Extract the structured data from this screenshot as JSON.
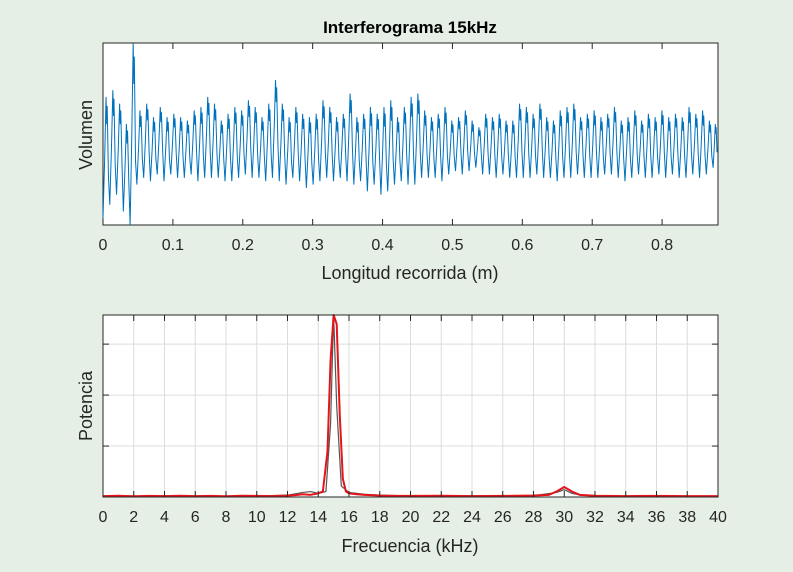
{
  "colors": {
    "background": "#e5efe5",
    "signal": "#0072bd",
    "spectrum": "#e4141b",
    "spectrum_secondary": "#555555"
  },
  "chart_data": [
    {
      "type": "line",
      "title": "Interferograma 15kHz",
      "xlabel": "Longitud recorrida (m)",
      "ylabel": "Volumen",
      "xlim": [
        0,
        0.88
      ],
      "x_ticks": [
        0,
        0.1,
        0.2,
        0.3,
        0.4,
        0.5,
        0.6,
        0.7,
        0.8
      ],
      "x_tick_labels": [
        "0",
        "0.1",
        "0.2",
        "0.3",
        "0.4",
        "0.5",
        "0.6",
        "0.7",
        "0.8"
      ],
      "ylim": [
        -1.2,
        1.5
      ],
      "y_ticks_labeled": false,
      "grid": false,
      "series": [
        {
          "color": "#0072bd",
          "description": "quasi-periodic oscillation, about 90 cycles over 0.88 m, amplitude roughly +/-0.55 with occasional peaks",
          "x": [
            0,
            0.0097,
            0.0194,
            0.0291,
            0.0388,
            0.0485,
            0.0582,
            0.0679,
            0.0776,
            0.0873,
            0.097,
            0.1067,
            0.1164,
            0.1261,
            0.1358,
            0.1455,
            0.1552,
            0.1649,
            0.1746,
            0.1843,
            0.194,
            0.2037,
            0.2134,
            0.2231,
            0.2328,
            0.2425,
            0.2522,
            0.2619,
            0.2716,
            0.2813,
            0.291,
            0.3007,
            0.3104,
            0.3201,
            0.3298,
            0.3395,
            0.3492,
            0.3589,
            0.3686,
            0.3783,
            0.388,
            0.3977,
            0.4074,
            0.4171,
            0.4268,
            0.4365,
            0.4462,
            0.4559,
            0.4656,
            0.4753,
            0.485,
            0.4947,
            0.5044,
            0.5141,
            0.5238,
            0.5335,
            0.5432,
            0.5529,
            0.5626,
            0.5723,
            0.582,
            0.5917,
            0.6014,
            0.6111,
            0.6208,
            0.6305,
            0.6402,
            0.6499,
            0.6596,
            0.6693,
            0.679,
            0.6887,
            0.6984,
            0.7081,
            0.7178,
            0.7275,
            0.7372,
            0.7469,
            0.7566,
            0.7663,
            0.776,
            0.7857,
            0.7954,
            0.8051,
            0.8148,
            0.8245,
            0.8342,
            0.8439,
            0.8536,
            0.8633,
            0.873
          ],
          "peaks": [
            0.7,
            0.8,
            0.6,
            0.3,
            1.5,
            0.5,
            0.6,
            0.4,
            0.55,
            0.4,
            0.45,
            0.4,
            0.35,
            0.5,
            0.55,
            0.7,
            0.6,
            0.35,
            0.45,
            0.55,
            0.5,
            0.65,
            0.55,
            0.4,
            0.6,
            0.95,
            0.6,
            0.4,
            0.55,
            0.45,
            0.4,
            0.45,
            0.65,
            0.55,
            0.4,
            0.45,
            0.75,
            0.4,
            0.45,
            0.55,
            0.45,
            0.55,
            0.65,
            0.4,
            0.55,
            0.7,
            0.75,
            0.5,
            0.4,
            0.45,
            0.55,
            0.35,
            0.4,
            0.5,
            0.35,
            0.25,
            0.45,
            0.4,
            0.45,
            0.35,
            0.35,
            0.6,
            0.55,
            0.45,
            0.6,
            0.4,
            0.35,
            0.5,
            0.55,
            0.6,
            0.4,
            0.45,
            0.5,
            0.4,
            0.45,
            0.55,
            0.35,
            0.4,
            0.5,
            0.35,
            0.45,
            0.4,
            0.5,
            0.4,
            0.45,
            0.4,
            0.55,
            0.45,
            0.5,
            0.35,
            0.3
          ],
          "troughs": [
            -1.1,
            -0.9,
            -0.75,
            -1.0,
            -1.2,
            -0.6,
            -0.5,
            -0.55,
            -0.45,
            -0.55,
            -0.45,
            -0.5,
            -0.5,
            -0.45,
            -0.55,
            -0.5,
            -0.5,
            -0.5,
            -0.55,
            -0.55,
            -0.5,
            -0.45,
            -0.5,
            -0.5,
            -0.55,
            -0.5,
            -0.55,
            -0.6,
            -0.5,
            -0.55,
            -0.65,
            -0.6,
            -0.55,
            -0.5,
            -0.55,
            -0.5,
            -0.55,
            -0.6,
            -0.55,
            -0.7,
            -0.6,
            -0.75,
            -0.7,
            -0.6,
            -0.55,
            -0.6,
            -0.6,
            -0.5,
            -0.5,
            -0.5,
            -0.55,
            -0.45,
            -0.4,
            -0.45,
            -0.4,
            -0.35,
            -0.45,
            -0.45,
            -0.5,
            -0.45,
            -0.5,
            -0.5,
            -0.5,
            -0.5,
            -0.45,
            -0.5,
            -0.5,
            -0.55,
            -0.5,
            -0.5,
            -0.45,
            -0.5,
            -0.5,
            -0.5,
            -0.45,
            -0.45,
            -0.5,
            -0.55,
            -0.5,
            -0.45,
            -0.5,
            -0.5,
            -0.45,
            -0.5,
            -0.45,
            -0.5,
            -0.5,
            -0.45,
            -0.5,
            -0.45,
            -0.35
          ]
        }
      ]
    },
    {
      "type": "line",
      "title": "",
      "xlabel": "Frecuencia (kHz)",
      "ylabel": "Potencia",
      "xlim": [
        0,
        40
      ],
      "x_ticks": [
        0,
        2,
        4,
        6,
        8,
        10,
        12,
        14,
        16,
        18,
        20,
        22,
        24,
        26,
        28,
        30,
        32,
        34,
        36,
        38,
        40
      ],
      "x_tick_labels": [
        "0",
        "2",
        "4",
        "6",
        "8",
        "10",
        "12",
        "14",
        "16",
        "18",
        "20",
        "22",
        "24",
        "26",
        "28",
        "30",
        "32",
        "34",
        "36",
        "38",
        "40"
      ],
      "ylim": [
        0,
        1
      ],
      "y_ticks": [
        0.28,
        0.56,
        0.84
      ],
      "y_ticks_labeled": false,
      "grid": true,
      "series": [
        {
          "color": "#555555",
          "x": [
            0,
            2,
            4,
            6,
            8,
            10,
            12,
            13,
            13.5,
            14,
            14.5,
            14.8,
            15,
            15.2,
            15.5,
            16,
            17,
            18,
            20,
            24,
            28,
            29.5,
            30,
            30.5,
            31,
            32,
            36,
            40
          ],
          "y": [
            0.005,
            0.004,
            0.006,
            0.004,
            0.005,
            0.006,
            0.01,
            0.025,
            0.03,
            0.02,
            0.03,
            0.4,
            1.0,
            0.5,
            0.06,
            0.025,
            0.015,
            0.01,
            0.006,
            0.006,
            0.007,
            0.025,
            0.04,
            0.02,
            0.012,
            0.006,
            0.004,
            0.004
          ]
        },
        {
          "color": "#e4141b",
          "x": [
            0,
            1,
            2,
            3,
            4,
            5,
            6,
            7,
            8,
            9,
            10,
            11,
            12,
            12.5,
            13,
            13.5,
            14,
            14.3,
            14.6,
            14.8,
            15,
            15.2,
            15.4,
            15.6,
            15.8,
            16,
            16.5,
            17,
            18,
            19,
            20,
            22,
            24,
            26,
            28,
            29,
            29.5,
            30,
            30.5,
            31,
            32,
            34,
            36,
            38,
            40
          ],
          "y": [
            0.005,
            0.007,
            0.004,
            0.006,
            0.005,
            0.007,
            0.005,
            0.006,
            0.004,
            0.007,
            0.006,
            0.005,
            0.008,
            0.01,
            0.015,
            0.012,
            0.02,
            0.03,
            0.25,
            0.75,
            1.0,
            0.95,
            0.45,
            0.1,
            0.03,
            0.02,
            0.015,
            0.012,
            0.008,
            0.006,
            0.006,
            0.007,
            0.005,
            0.006,
            0.008,
            0.012,
            0.03,
            0.055,
            0.03,
            0.012,
            0.007,
            0.005,
            0.006,
            0.005,
            0.005
          ]
        }
      ]
    }
  ]
}
